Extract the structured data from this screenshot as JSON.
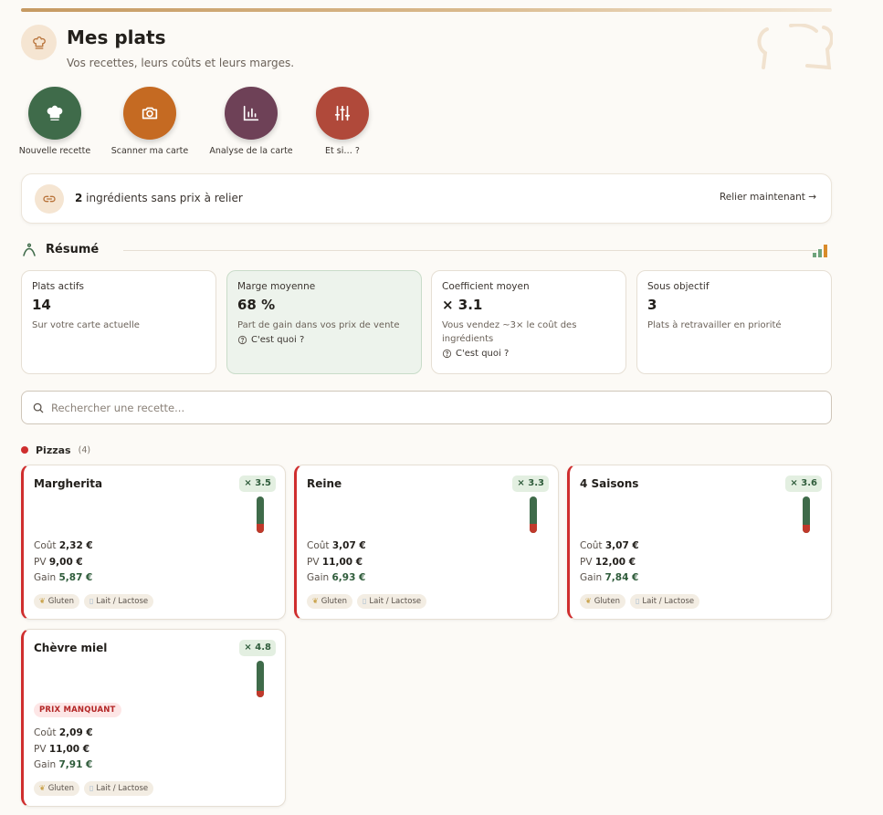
{
  "header": {
    "title": "Mes plats",
    "subtitle": "Vos recettes, leurs coûts et leurs marges."
  },
  "quick_actions": [
    {
      "label": "Nouvelle recette",
      "icon": "chef-hat-icon",
      "color": "#3f6b4a"
    },
    {
      "label": "Scanner ma carte",
      "icon": "camera-icon",
      "color": "#c56a22"
    },
    {
      "label": "Analyse de la carte",
      "icon": "bar-chart-icon",
      "color": "#6e4157"
    },
    {
      "label": "Et si… ?",
      "icon": "sliders-icon",
      "color": "#b0493a"
    }
  ],
  "banner": {
    "count": "2",
    "text": " ingrédients sans prix à relier",
    "action": "Relier maintenant →"
  },
  "summary": {
    "title": "Résumé",
    "stats": [
      {
        "label": "Plats actifs",
        "value": "14",
        "desc": "Sur votre carte actuelle",
        "help": ""
      },
      {
        "label": "Marge moyenne",
        "value": "68 %",
        "desc": "Part de gain dans vos prix de vente",
        "help": "C'est quoi ?"
      },
      {
        "label": "Coefficient moyen",
        "value": "× 3.1",
        "desc": "Vous vendez ~3× le coût des ingrédients",
        "help": "C'est quoi ?"
      },
      {
        "label": "Sous objectif",
        "value": "3",
        "desc": "Plats à retravailler en priorité",
        "help": ""
      }
    ]
  },
  "search": {
    "placeholder": "Rechercher une recette..."
  },
  "category": {
    "name": "Pizzas",
    "count": "(4)",
    "color": "#cf2e2e"
  },
  "labels": {
    "cost": "Coût",
    "price": "PV",
    "gain": "Gain",
    "missing_price": "PRIX MANQUANT"
  },
  "recipes": [
    {
      "name": "Margherita",
      "coef": "× 3.5",
      "cost": "2,32 €",
      "price": "9,00 €",
      "gain": "5,87 €",
      "gauge_low_fraction": 0.25,
      "missing_price": false,
      "tags": [
        "Gluten",
        "Lait / Lactose"
      ]
    },
    {
      "name": "Reine",
      "coef": "× 3.3",
      "cost": "3,07 €",
      "price": "11,00 €",
      "gain": "6,93 €",
      "gauge_low_fraction": 0.25,
      "missing_price": false,
      "tags": [
        "Gluten",
        "Lait / Lactose"
      ]
    },
    {
      "name": "4 Saisons",
      "coef": "× 3.6",
      "cost": "3,07 €",
      "price": "12,00 €",
      "gain": "7,84 €",
      "gauge_low_fraction": 0.22,
      "missing_price": false,
      "tags": [
        "Gluten",
        "Lait / Lactose"
      ]
    },
    {
      "name": "Chèvre miel",
      "coef": "× 4.8",
      "cost": "2,09 €",
      "price": "11,00 €",
      "gain": "7,91 €",
      "gauge_low_fraction": 0.18,
      "missing_price": true,
      "tags": [
        "Gluten",
        "Lait / Lactose"
      ]
    }
  ]
}
